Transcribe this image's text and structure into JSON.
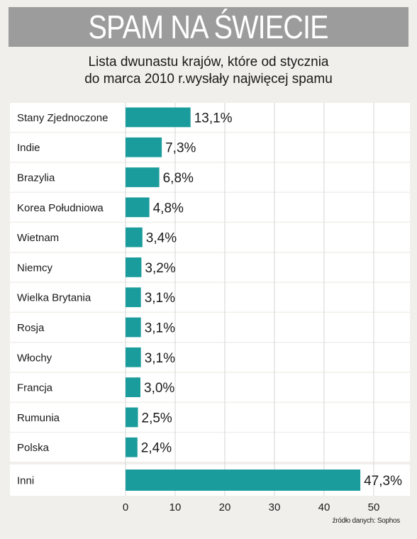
{
  "header": {
    "title": "SPAM NA ŚWIECIE",
    "subtitle_line1": "Lista dwunastu krajów, które od stycznia",
    "subtitle_line2": "do marca 2010 r.wysłały najwięcej spamu"
  },
  "source": "źródło danych: Sophos",
  "colors": {
    "bar": "#1a9c9c",
    "banner": "#9c9c9c",
    "background": "#f0efeb",
    "row": "#ffffff"
  },
  "chart_data": {
    "type": "bar",
    "orientation": "horizontal",
    "categories": [
      "Stany Zjednoczone",
      "Indie",
      "Brazylia",
      "Korea Południowa",
      "Wietnam",
      "Niemcy",
      "Wielka Brytania",
      "Rosja",
      "Włochy",
      "Francja",
      "Rumunia",
      "Polska",
      "Inni"
    ],
    "values": [
      13.1,
      7.3,
      6.8,
      4.8,
      3.4,
      3.2,
      3.1,
      3.1,
      3.1,
      3.0,
      2.5,
      2.4,
      47.3
    ],
    "value_labels": [
      "13,1%",
      "7,3%",
      "6,8%",
      "4,8%",
      "3,4%",
      "3,2%",
      "3,1%",
      "3,1%",
      "3,1%",
      "3,0%",
      "2,5%",
      "2,4%",
      "47,3%"
    ],
    "xlim": [
      0,
      50
    ],
    "xticks": [
      0,
      10,
      20,
      30,
      40,
      50
    ],
    "xtick_labels": [
      "0",
      "10",
      "20",
      "30",
      "40",
      "50"
    ],
    "grid": true
  }
}
